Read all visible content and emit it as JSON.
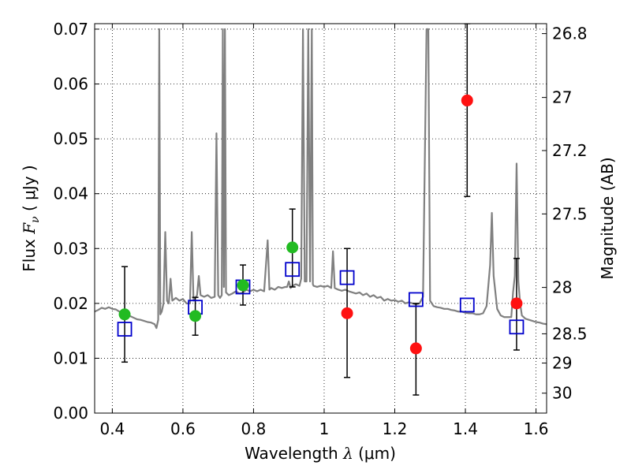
{
  "chart_data": {
    "type": "scatter",
    "title": "",
    "xlabel": {
      "prefix": "Wavelength",
      "symbol": "λ",
      "unit": "(μm)"
    },
    "ylabel": {
      "prefix": "Flux",
      "symbol": "F",
      "subscript": "ν",
      "unit": "( μJy )"
    },
    "ylabel_right": "Magnitude (AB)",
    "xlim": [
      0.35,
      1.63
    ],
    "ylim": [
      0.0,
      0.071
    ],
    "grid": true,
    "grid_style": "dotted",
    "xticks": [
      {
        "value": 0.4,
        "label": "0.4"
      },
      {
        "value": 0.6,
        "label": "0.6"
      },
      {
        "value": 0.8,
        "label": "0.8"
      },
      {
        "value": 1.0,
        "label": "1"
      },
      {
        "value": 1.2,
        "label": "1.2"
      },
      {
        "value": 1.4,
        "label": "1.4"
      },
      {
        "value": 1.6,
        "label": "1.6"
      }
    ],
    "yticks": [
      {
        "value": 0.0,
        "label": "0.00"
      },
      {
        "value": 0.01,
        "label": "0.01"
      },
      {
        "value": 0.02,
        "label": "0.02"
      },
      {
        "value": 0.03,
        "label": "0.03"
      },
      {
        "value": 0.04,
        "label": "0.04"
      },
      {
        "value": 0.05,
        "label": "0.05"
      },
      {
        "value": 0.06,
        "label": "0.06"
      },
      {
        "value": 0.07,
        "label": "0.07"
      }
    ],
    "right_ticks": [
      {
        "mag": 26.8,
        "label": "26.8"
      },
      {
        "mag": 27.0,
        "label": "27"
      },
      {
        "mag": 27.2,
        "label": "27.2"
      },
      {
        "mag": 27.5,
        "label": "27.5"
      },
      {
        "mag": 28.0,
        "label": "28"
      },
      {
        "mag": 28.5,
        "label": "28.5"
      },
      {
        "mag": 29.0,
        "label": "29"
      },
      {
        "mag": 30.0,
        "label": "30"
      }
    ],
    "colors": {
      "model": "#808080",
      "detection": "#22bb22",
      "nondetection": "#ff1111",
      "model_photometry": "#0000cc",
      "errorbar": "#000000"
    },
    "series": [
      {
        "kind": "line",
        "points": [
          [
            0.35,
            0.0185
          ],
          [
            0.36,
            0.0188
          ],
          [
            0.37,
            0.0192
          ],
          [
            0.38,
            0.019
          ],
          [
            0.39,
            0.0193
          ],
          [
            0.4,
            0.019
          ],
          [
            0.41,
            0.0189
          ],
          [
            0.42,
            0.0185
          ],
          [
            0.43,
            0.0182
          ],
          [
            0.44,
            0.018
          ],
          [
            0.45,
            0.0177
          ],
          [
            0.46,
            0.0174
          ],
          [
            0.47,
            0.0171
          ],
          [
            0.48,
            0.017
          ],
          [
            0.49,
            0.0168
          ],
          [
            0.5,
            0.0166
          ],
          [
            0.51,
            0.0165
          ],
          [
            0.52,
            0.0162
          ],
          [
            0.525,
            0.0155
          ],
          [
            0.53,
            0.017
          ],
          [
            0.533,
            0.07
          ],
          [
            0.536,
            0.018
          ],
          [
            0.54,
            0.0185
          ],
          [
            0.545,
            0.02
          ],
          [
            0.55,
            0.033
          ],
          [
            0.555,
            0.0205
          ],
          [
            0.56,
            0.02
          ],
          [
            0.565,
            0.0245
          ],
          [
            0.57,
            0.0205
          ],
          [
            0.58,
            0.021
          ],
          [
            0.59,
            0.0205
          ],
          [
            0.6,
            0.0208
          ],
          [
            0.61,
            0.02
          ],
          [
            0.62,
            0.02
          ],
          [
            0.625,
            0.033
          ],
          [
            0.63,
            0.0205
          ],
          [
            0.64,
            0.0215
          ],
          [
            0.645,
            0.025
          ],
          [
            0.65,
            0.0215
          ],
          [
            0.66,
            0.0212
          ],
          [
            0.67,
            0.0215
          ],
          [
            0.68,
            0.021
          ],
          [
            0.69,
            0.0212
          ],
          [
            0.695,
            0.051
          ],
          [
            0.7,
            0.0215
          ],
          [
            0.705,
            0.021
          ],
          [
            0.71,
            0.0215
          ],
          [
            0.713,
            0.07
          ],
          [
            0.716,
            0.023
          ],
          [
            0.719,
            0.07
          ],
          [
            0.722,
            0.022
          ],
          [
            0.73,
            0.0215
          ],
          [
            0.74,
            0.0218
          ],
          [
            0.75,
            0.0222
          ],
          [
            0.76,
            0.0218
          ],
          [
            0.77,
            0.022
          ],
          [
            0.78,
            0.0225
          ],
          [
            0.79,
            0.0222
          ],
          [
            0.8,
            0.0225
          ],
          [
            0.81,
            0.0222
          ],
          [
            0.82,
            0.0225
          ],
          [
            0.83,
            0.0222
          ],
          [
            0.84,
            0.0315
          ],
          [
            0.845,
            0.0225
          ],
          [
            0.85,
            0.0228
          ],
          [
            0.86,
            0.0225
          ],
          [
            0.87,
            0.023
          ],
          [
            0.88,
            0.0228
          ],
          [
            0.89,
            0.023
          ],
          [
            0.895,
            0.023
          ],
          [
            0.9,
            0.024
          ],
          [
            0.905,
            0.0228
          ],
          [
            0.91,
            0.0232
          ],
          [
            0.92,
            0.0235
          ],
          [
            0.93,
            0.0232
          ],
          [
            0.935,
            0.0245
          ],
          [
            0.94,
            0.07
          ],
          [
            0.945,
            0.024
          ],
          [
            0.95,
            0.024
          ],
          [
            0.955,
            0.07
          ],
          [
            0.96,
            0.024
          ],
          [
            0.965,
            0.07
          ],
          [
            0.968,
            0.0235
          ],
          [
            0.97,
            0.0232
          ],
          [
            0.98,
            0.023
          ],
          [
            0.99,
            0.0232
          ],
          [
            1.0,
            0.023
          ],
          [
            1.01,
            0.0232
          ],
          [
            1.02,
            0.0228
          ],
          [
            1.025,
            0.0295
          ],
          [
            1.03,
            0.0228
          ],
          [
            1.04,
            0.0225
          ],
          [
            1.05,
            0.0223
          ],
          [
            1.06,
            0.0225
          ],
          [
            1.07,
            0.0222
          ],
          [
            1.08,
            0.022
          ],
          [
            1.09,
            0.0218
          ],
          [
            1.1,
            0.022
          ],
          [
            1.11,
            0.0215
          ],
          [
            1.12,
            0.0218
          ],
          [
            1.13,
            0.0212
          ],
          [
            1.14,
            0.0215
          ],
          [
            1.15,
            0.021
          ],
          [
            1.16,
            0.0212
          ],
          [
            1.17,
            0.0205
          ],
          [
            1.18,
            0.0208
          ],
          [
            1.19,
            0.0205
          ],
          [
            1.2,
            0.0206
          ],
          [
            1.21,
            0.0203
          ],
          [
            1.22,
            0.0205
          ],
          [
            1.23,
            0.02
          ],
          [
            1.24,
            0.0202
          ],
          [
            1.25,
            0.02
          ],
          [
            1.26,
            0.0198
          ],
          [
            1.27,
            0.02
          ],
          [
            1.28,
            0.0212
          ],
          [
            1.29,
            0.07
          ],
          [
            1.295,
            0.07
          ],
          [
            1.3,
            0.0205
          ],
          [
            1.31,
            0.0195
          ],
          [
            1.32,
            0.0193
          ],
          [
            1.33,
            0.0192
          ],
          [
            1.34,
            0.019
          ],
          [
            1.35,
            0.019
          ],
          [
            1.36,
            0.0188
          ],
          [
            1.37,
            0.0187
          ],
          [
            1.38,
            0.0185
          ],
          [
            1.39,
            0.0185
          ],
          [
            1.4,
            0.0183
          ],
          [
            1.41,
            0.0182
          ],
          [
            1.42,
            0.0182
          ],
          [
            1.43,
            0.018
          ],
          [
            1.44,
            0.018
          ],
          [
            1.45,
            0.0182
          ],
          [
            1.46,
            0.0195
          ],
          [
            1.47,
            0.027
          ],
          [
            1.475,
            0.0365
          ],
          [
            1.48,
            0.025
          ],
          [
            1.49,
            0.019
          ],
          [
            1.5,
            0.0178
          ],
          [
            1.51,
            0.0175
          ],
          [
            1.52,
            0.0175
          ],
          [
            1.53,
            0.0175
          ],
          [
            1.535,
            0.022
          ],
          [
            1.54,
            0.025
          ],
          [
            1.545,
            0.0455
          ],
          [
            1.55,
            0.024
          ],
          [
            1.555,
            0.02
          ],
          [
            1.56,
            0.0178
          ],
          [
            1.57,
            0.0172
          ],
          [
            1.58,
            0.017
          ],
          [
            1.59,
            0.0168
          ],
          [
            1.6,
            0.0166
          ],
          [
            1.61,
            0.0165
          ],
          [
            1.62,
            0.0163
          ],
          [
            1.63,
            0.0162
          ]
        ]
      },
      {
        "kind": "errorbars",
        "points": [
          {
            "x": 0.435,
            "lo": 0.0093,
            "hi": 0.0267
          },
          {
            "x": 0.635,
            "lo": 0.0142,
            "hi": 0.0211
          },
          {
            "x": 0.77,
            "lo": 0.0197,
            "hi": 0.027
          },
          {
            "x": 0.91,
            "lo": 0.023,
            "hi": 0.0372
          },
          {
            "x": 1.065,
            "lo": 0.0065,
            "hi": 0.03
          },
          {
            "x": 1.26,
            "lo": 0.0033,
            "hi": 0.02
          },
          {
            "x": 1.405,
            "lo": 0.0395,
            "hi": 0.071
          },
          {
            "x": 1.545,
            "lo": 0.0115,
            "hi": 0.0282
          }
        ]
      },
      {
        "kind": "squares",
        "points": [
          {
            "x": 0.435,
            "y": 0.0153
          },
          {
            "x": 0.635,
            "y": 0.0193
          },
          {
            "x": 0.77,
            "y": 0.023
          },
          {
            "x": 0.91,
            "y": 0.0262
          },
          {
            "x": 1.065,
            "y": 0.0247
          },
          {
            "x": 1.26,
            "y": 0.0207
          },
          {
            "x": 1.405,
            "y": 0.0197
          },
          {
            "x": 1.545,
            "y": 0.0157
          }
        ]
      },
      {
        "kind": "detected",
        "points": [
          {
            "x": 0.435,
            "y": 0.018
          },
          {
            "x": 0.635,
            "y": 0.0177
          },
          {
            "x": 0.77,
            "y": 0.0233
          },
          {
            "x": 0.91,
            "y": 0.0302
          }
        ]
      },
      {
        "kind": "undetected",
        "points": [
          {
            "x": 1.065,
            "y": 0.0182
          },
          {
            "x": 1.26,
            "y": 0.0118
          },
          {
            "x": 1.405,
            "y": 0.057
          },
          {
            "x": 1.545,
            "y": 0.02
          }
        ]
      }
    ]
  }
}
